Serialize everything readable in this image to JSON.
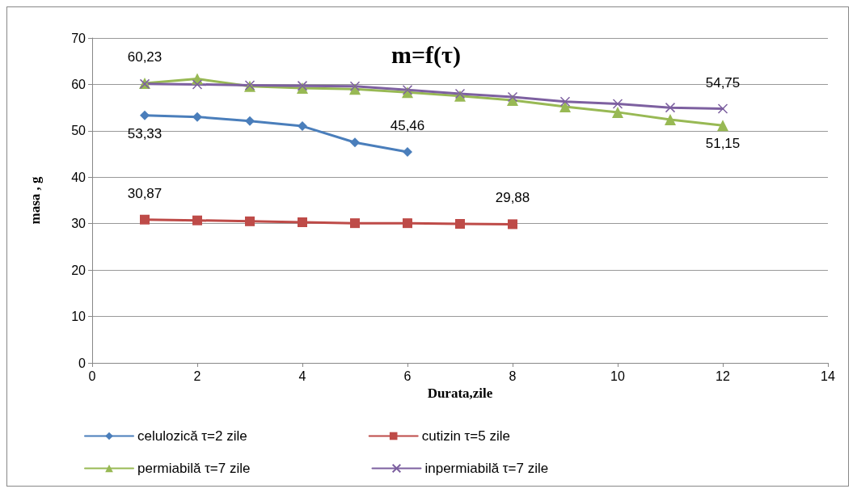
{
  "chart_data": {
    "type": "line",
    "title": "m=f(τ)",
    "xlabel": "Durata,zile",
    "ylabel": "masa , g",
    "xlim": [
      0,
      14
    ],
    "xticks": [
      0,
      2,
      4,
      6,
      8,
      10,
      12,
      14
    ],
    "ylim": [
      0,
      70
    ],
    "yticks": [
      0,
      10,
      20,
      30,
      40,
      50,
      60,
      70
    ],
    "grid": "y",
    "legend": "bottom",
    "line_style": "solid",
    "series": [
      {
        "name": "celulozică τ=2 zile",
        "color": "#4a7ebb",
        "marker": "diamond",
        "x": [
          1,
          2,
          3,
          4,
          5,
          6
        ],
        "values": [
          53.33,
          53.0,
          52.1,
          51.0,
          47.5,
          45.46
        ]
      },
      {
        "name": "cutizin τ=5 zile",
        "color": "#be4b48",
        "marker": "square",
        "x": [
          1,
          2,
          3,
          4,
          5,
          6,
          7,
          8
        ],
        "values": [
          30.87,
          30.7,
          30.5,
          30.3,
          30.1,
          30.1,
          29.95,
          29.88
        ]
      },
      {
        "name": "permiabilă τ=7 zile",
        "color": "#98b954",
        "marker": "triangle",
        "x": [
          1,
          2,
          3,
          4,
          5,
          6,
          7,
          8,
          9,
          10,
          11,
          12
        ],
        "values": [
          60.23,
          61.2,
          59.6,
          59.2,
          59.0,
          58.3,
          57.5,
          56.6,
          55.2,
          54.0,
          52.4,
          51.15
        ]
      },
      {
        "name": "inpermiabilă τ=7 zile",
        "color": "#7d60a0",
        "marker": "cross",
        "x": [
          1,
          2,
          3,
          4,
          5,
          6,
          7,
          8,
          9,
          10,
          11,
          12
        ],
        "values": [
          60.1,
          60.0,
          59.8,
          59.7,
          59.6,
          58.8,
          58.0,
          57.3,
          56.3,
          55.8,
          55.0,
          54.75
        ]
      }
    ],
    "annotations": [
      {
        "text": "60,23",
        "x": 1,
        "y": 60.23
      },
      {
        "text": "53,33",
        "x": 1,
        "y": 53.33
      },
      {
        "text": "45,46",
        "x": 6,
        "y": 45.46
      },
      {
        "text": "30,87",
        "x": 1,
        "y": 30.87
      },
      {
        "text": "29,88",
        "x": 8,
        "y": 29.88
      },
      {
        "text": "54,75",
        "x": 12,
        "y": 54.75
      },
      {
        "text": "51,15",
        "x": 12,
        "y": 51.15
      }
    ]
  }
}
